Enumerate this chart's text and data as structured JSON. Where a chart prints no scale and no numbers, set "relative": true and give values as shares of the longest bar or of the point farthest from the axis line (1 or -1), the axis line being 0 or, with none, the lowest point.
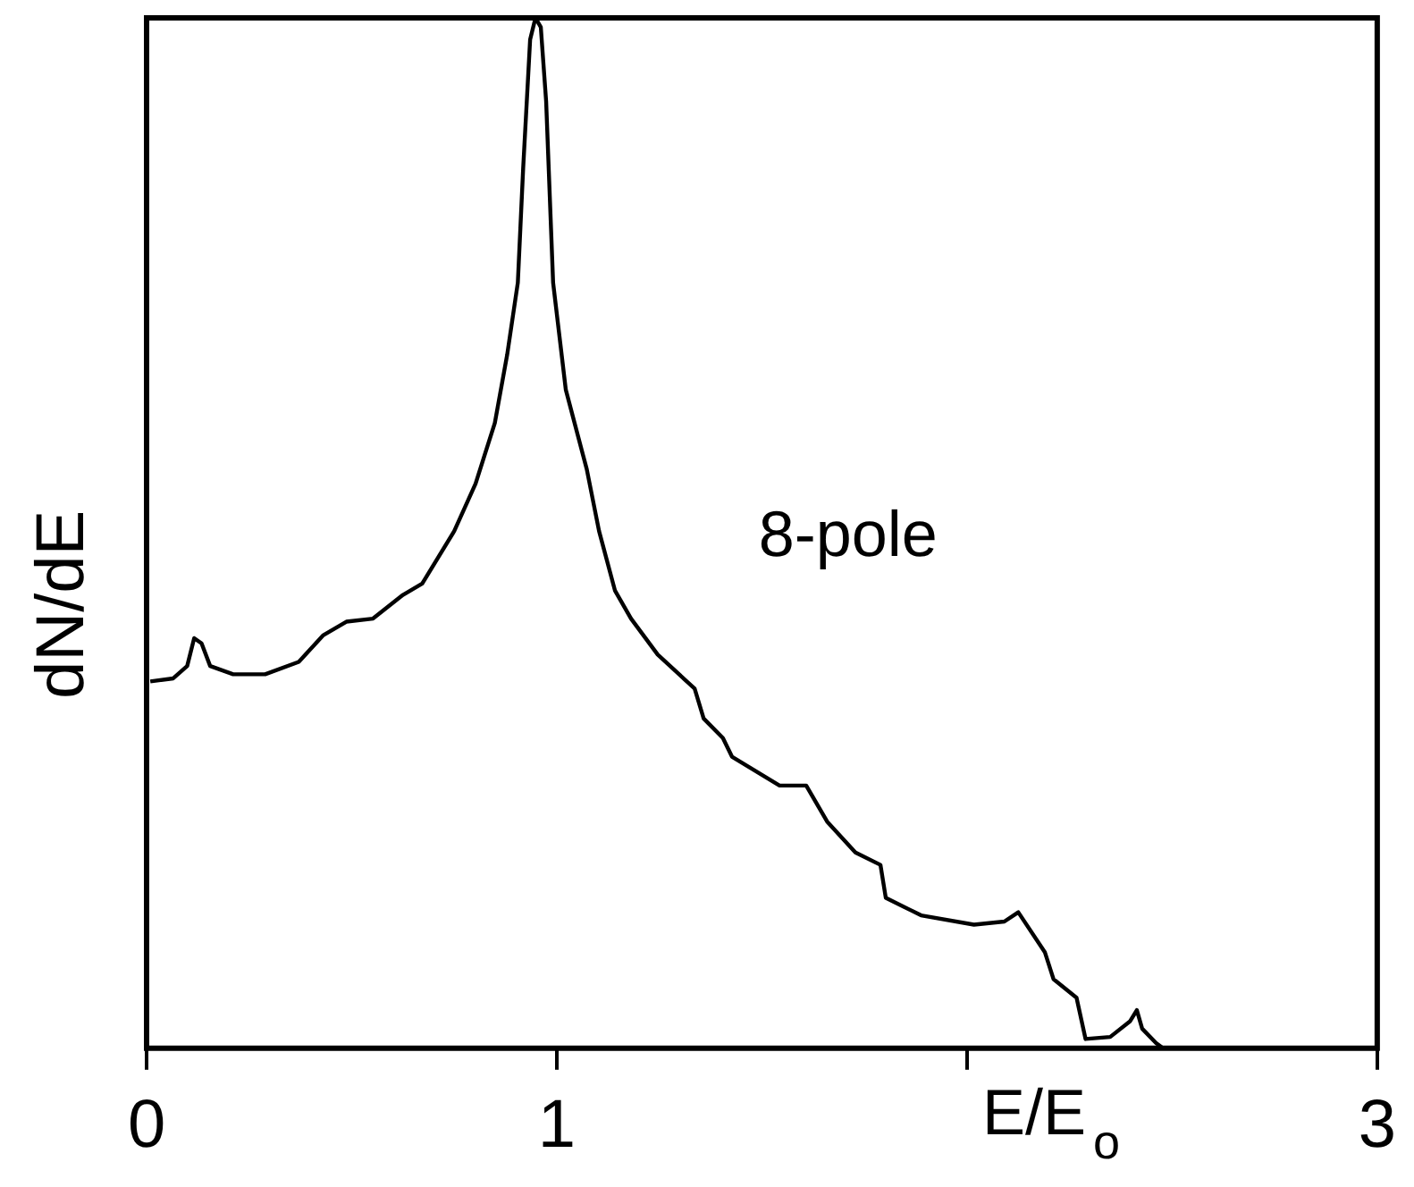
{
  "chart_data": {
    "type": "line",
    "xlabel": "E/E$_{o}$",
    "ylabel": "dN/dE",
    "relative": true,
    "xlim": [
      0,
      3
    ],
    "xticks": [
      0,
      1,
      {
        "value": 2,
        "label": null
      },
      3
    ],
    "tick_labels": "x",
    "grid": false,
    "legend": false,
    "marker": "none",
    "line_style": "solid",
    "annotations": [
      "8-pole"
    ],
    "series": [
      {
        "color": "#000000",
        "x": [
          0.009,
          0.065,
          0.099,
          0.116,
          0.134,
          0.155,
          0.211,
          0.289,
          0.371,
          0.431,
          0.487,
          0.552,
          0.625,
          0.672,
          0.75,
          0.802,
          0.849,
          0.879,
          0.905,
          0.918,
          0.935,
          0.948,
          0.961,
          0.974,
          0.991,
          1.022,
          1.073,
          1.103,
          1.142,
          1.181,
          1.246,
          1.336,
          1.358,
          1.405,
          1.427,
          1.543,
          1.608,
          1.659,
          1.728,
          1.789,
          1.802,
          1.888,
          2.017,
          2.091,
          2.125,
          2.19,
          2.211,
          2.267,
          2.289,
          2.349,
          2.397,
          2.414,
          2.427,
          2.461,
          2.478
        ],
        "values": [
          0.356,
          0.359,
          0.371,
          0.398,
          0.393,
          0.371,
          0.363,
          0.363,
          0.375,
          0.401,
          0.414,
          0.417,
          0.44,
          0.451,
          0.502,
          0.548,
          0.607,
          0.673,
          0.743,
          0.854,
          0.979,
          1,
          0.991,
          0.919,
          0.743,
          0.639,
          0.562,
          0.502,
          0.444,
          0.417,
          0.382,
          0.349,
          0.32,
          0.301,
          0.283,
          0.255,
          0.255,
          0.22,
          0.19,
          0.178,
          0.146,
          0.129,
          0.12,
          0.123,
          0.132,
          0.093,
          0.067,
          0.049,
          0.009,
          0.011,
          0.026,
          0.037,
          0.019,
          0.005,
          0
        ]
      }
    ]
  }
}
